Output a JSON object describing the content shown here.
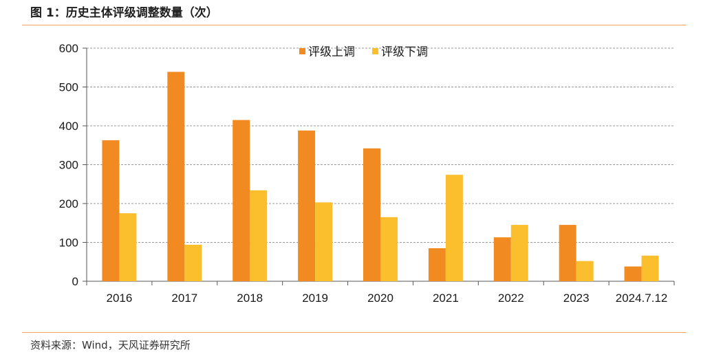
{
  "figure": {
    "title": "图 1：历史主体评级调整数量（次）",
    "source": "资料来源：Wind，天风证券研究所"
  },
  "chart_data": {
    "type": "bar",
    "categories": [
      "2016",
      "2017",
      "2018",
      "2019",
      "2020",
      "2021",
      "2022",
      "2023",
      "2024.7.12"
    ],
    "series": [
      {
        "name": "评级上调",
        "color": "#f28a22",
        "values": [
          363,
          539,
          415,
          388,
          342,
          85,
          113,
          145,
          38
        ]
      },
      {
        "name": "评级下调",
        "color": "#fbbf2e",
        "values": [
          175,
          94,
          234,
          203,
          165,
          274,
          145,
          52,
          66
        ]
      }
    ],
    "ylim": [
      0,
      600
    ],
    "yticks": [
      0,
      100,
      200,
      300,
      400,
      500,
      600
    ],
    "grid": true,
    "legend_position": "top-center",
    "title": "",
    "xlabel": "",
    "ylabel": ""
  }
}
